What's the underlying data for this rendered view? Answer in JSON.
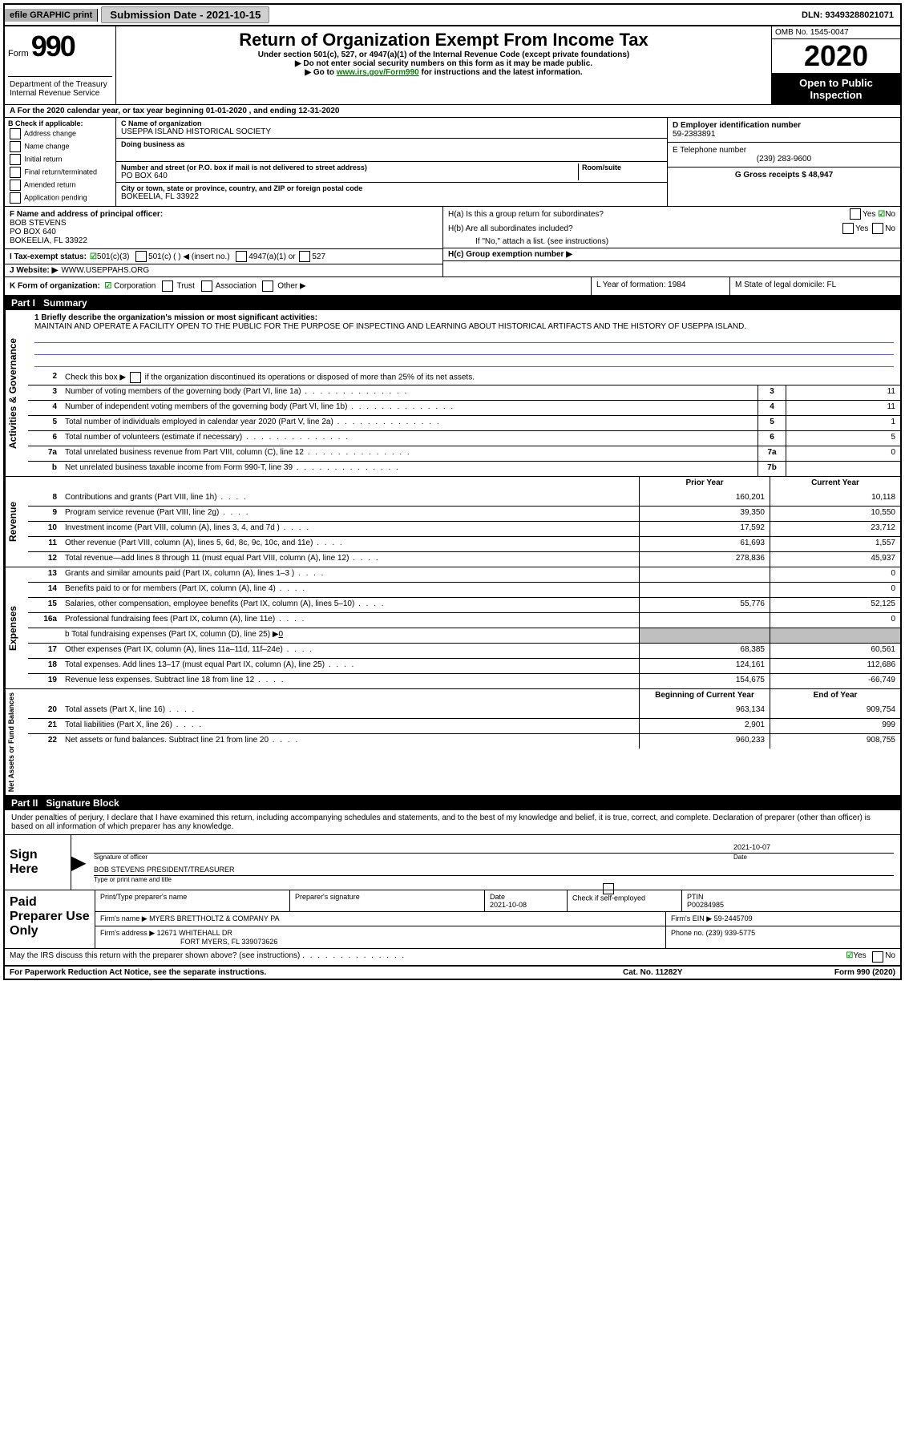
{
  "topbar": {
    "efile_label": "efile GRAPHIC print",
    "submission_label": "Submission Date - 2021-10-15",
    "dln_label": "DLN: 93493288021071"
  },
  "header": {
    "form_label": "Form",
    "form_number": "990",
    "dept_text": "Department of the Treasury\nInternal Revenue Service",
    "title": "Return of Organization Exempt From Income Tax",
    "subtitle": "Under section 501(c), 527, or 4947(a)(1) of the Internal Revenue Code (except private foundations)",
    "instr1_prefix": "▶ Do not enter social security numbers on this form as it may be made public.",
    "instr2_prefix": "▶ Go to ",
    "instr2_link": "www.irs.gov/Form990",
    "instr2_suffix": " for instructions and the latest information.",
    "omb": "OMB No. 1545-0047",
    "year": "2020",
    "open_public1": "Open to Public",
    "open_public2": "Inspection"
  },
  "row_a": "A For the 2020 calendar year, or tax year beginning 01-01-2020    , and ending 12-31-2020",
  "section_b": {
    "b_label": "B Check if applicable:",
    "address_change": "Address change",
    "name_change": "Name change",
    "initial_return": "Initial return",
    "final_return": "Final return/terminated",
    "amended_return": "Amended return",
    "application_pending": "Application pending",
    "c_name_label": "C Name of organization",
    "c_name_val": "USEPPA ISLAND HISTORICAL SOCIETY",
    "dba_label": "Doing business as",
    "addr_label": "Number and street (or P.O. box if mail is not delivered to street address)",
    "addr_val": "PO BOX 640",
    "room_label": "Room/suite",
    "city_label": "City or town, state or province, country, and ZIP or foreign postal code",
    "city_val": "BOKEELIA, FL  33922",
    "d_label": "D Employer identification number",
    "d_val": "59-2383891",
    "e_label": "E Telephone number",
    "e_val": "(239) 283-9600",
    "g_label": "G Gross receipts $ 48,947"
  },
  "section_f": {
    "f_label": "F  Name and address of principal officer:",
    "f_name": "BOB STEVENS",
    "f_addr1": "PO BOX 640",
    "f_addr2": "BOKEELIA, FL  33922",
    "ha_label": "H(a)  Is this a group return for subordinates?",
    "hb_label": "H(b)  Are all subordinates included?",
    "hb_note": "If \"No,\" attach a list. (see instructions)",
    "hc_label": "H(c)   Group exemption number ▶",
    "yes": "Yes",
    "no": "No"
  },
  "row_i": {
    "label": "I    Tax-exempt status:",
    "opt1": "501(c)(3)",
    "opt2": "501(c) (  ) ◀ (insert no.)",
    "opt3": "4947(a)(1) or",
    "opt4": "527"
  },
  "row_j": {
    "label": "J     Website: ▶",
    "val": " WWW.USEPPAHS.ORG"
  },
  "row_k": {
    "k_label": "K Form of organization:",
    "corp": "Corporation",
    "trust": "Trust",
    "assoc": "Association",
    "other": "Other ▶",
    "l_label": "L Year of formation: 1984",
    "m_label": "M State of legal domicile: FL"
  },
  "part1": {
    "tab": "Part I",
    "title": "Summary",
    "q1_label": "1  Briefly describe the organization's mission or most significant activities:",
    "q1_text": "MAINTAIN AND OPERATE A FACILITY OPEN TO THE PUBLIC FOR THE PURPOSE OF INSPECTING AND LEARNING ABOUT HISTORICAL ARTIFACTS AND THE HISTORY OF USEPPA ISLAND.",
    "q2": "Check this box ▶     if the organization discontinued its operations or disposed of more than 25% of its net assets.",
    "vert_gov": "Activities & Governance",
    "vert_rev": "Revenue",
    "vert_exp": "Expenses",
    "vert_net": "Net Assets or Fund Balances",
    "prior_header": "Prior Year",
    "curr_header": "Current Year",
    "begin_header": "Beginning of Current Year",
    "end_header": "End of Year",
    "fund_b_note": "b   Total fundraising expenses (Part IX, column (D), line 25) ▶",
    "fund_b_val": "0",
    "rows_gov": [
      {
        "n": "2",
        "desc": "",
        "box": "",
        "val": ""
      },
      {
        "n": "3",
        "desc": "Number of voting members of the governing body (Part VI, line 1a)",
        "box": "3",
        "val": "11"
      },
      {
        "n": "4",
        "desc": "Number of independent voting members of the governing body (Part VI, line 1b)",
        "box": "4",
        "val": "11"
      },
      {
        "n": "5",
        "desc": "Total number of individuals employed in calendar year 2020 (Part V, line 2a)",
        "box": "5",
        "val": "1"
      },
      {
        "n": "6",
        "desc": "Total number of volunteers (estimate if necessary)",
        "box": "6",
        "val": "5"
      },
      {
        "n": "7a",
        "desc": "Total unrelated business revenue from Part VIII, column (C), line 12",
        "box": "7a",
        "val": "0"
      },
      {
        "n": "b",
        "desc": "Net unrelated business taxable income from Form 990-T, line 39",
        "box": "7b",
        "val": ""
      }
    ],
    "rows_rev": [
      {
        "n": "8",
        "desc": "Contributions and grants (Part VIII, line 1h)",
        "prior": "160,201",
        "curr": "10,118"
      },
      {
        "n": "9",
        "desc": "Program service revenue (Part VIII, line 2g)",
        "prior": "39,350",
        "curr": "10,550"
      },
      {
        "n": "10",
        "desc": "Investment income (Part VIII, column (A), lines 3, 4, and 7d )",
        "prior": "17,592",
        "curr": "23,712"
      },
      {
        "n": "11",
        "desc": "Other revenue (Part VIII, column (A), lines 5, 6d, 8c, 9c, 10c, and 11e)",
        "prior": "61,693",
        "curr": "1,557"
      },
      {
        "n": "12",
        "desc": "Total revenue—add lines 8 through 11 (must equal Part VIII, column (A), line 12)",
        "prior": "278,836",
        "curr": "45,937"
      }
    ],
    "rows_exp": [
      {
        "n": "13",
        "desc": "Grants and similar amounts paid (Part IX, column (A), lines 1–3 )",
        "prior": "",
        "curr": "0"
      },
      {
        "n": "14",
        "desc": "Benefits paid to or for members (Part IX, column (A), line 4)",
        "prior": "",
        "curr": "0"
      },
      {
        "n": "15",
        "desc": "Salaries, other compensation, employee benefits (Part IX, column (A), lines 5–10)",
        "prior": "55,776",
        "curr": "52,125"
      },
      {
        "n": "16a",
        "desc": "Professional fundraising fees (Part IX, column (A), line 11e)",
        "prior": "",
        "curr": "0"
      },
      {
        "n": "17",
        "desc": "Other expenses (Part IX, column (A), lines 11a–11d, 11f–24e)",
        "prior": "68,385",
        "curr": "60,561"
      },
      {
        "n": "18",
        "desc": "Total expenses. Add lines 13–17 (must equal Part IX, column (A), line 25)",
        "prior": "124,161",
        "curr": "112,686"
      },
      {
        "n": "19",
        "desc": "Revenue less expenses. Subtract line 18 from line 12",
        "prior": "154,675",
        "curr": "-66,749"
      }
    ],
    "rows_net": [
      {
        "n": "20",
        "desc": "Total assets (Part X, line 16)",
        "prior": "963,134",
        "curr": "909,754"
      },
      {
        "n": "21",
        "desc": "Total liabilities (Part X, line 26)",
        "prior": "2,901",
        "curr": "999"
      },
      {
        "n": "22",
        "desc": "Net assets or fund balances. Subtract line 21 from line 20",
        "prior": "960,233",
        "curr": "908,755"
      }
    ]
  },
  "part2": {
    "tab": "Part II",
    "title": "Signature Block",
    "decl": "Under penalties of perjury, I declare that I have examined this return, including accompanying schedules and statements, and to the best of my knowledge and belief, it is true, correct, and complete. Declaration of preparer (other than officer) is based on all information of which preparer has any knowledge.",
    "sign_here": "Sign Here",
    "sig_officer_label": "Signature of officer",
    "sig_date_label": "Date",
    "sig_date_val": "2021-10-07",
    "sig_name": "BOB STEVENS  PRESIDENT/TREASURER",
    "sig_name_label": "Type or print name and title",
    "paid": "Paid Preparer Use Only",
    "prep_name_label": "Print/Type preparer's name",
    "prep_sig_label": "Preparer's signature",
    "prep_date_label": "Date",
    "prep_date_val": "2021-10-08",
    "prep_check_label": "Check       if self-employed",
    "ptin_label": "PTIN",
    "ptin_val": "P00284985",
    "firm_name_label": "Firm's name     ▶",
    "firm_name_val": " MYERS BRETTHOLTZ & COMPANY PA",
    "firm_ein_label": "Firm's EIN ▶ ",
    "firm_ein_val": "59-2445709",
    "firm_addr_label": "Firm's address ▶ ",
    "firm_addr_val1": "12671 WHITEHALL DR",
    "firm_addr_val2": "FORT MYERS, FL  339073626",
    "phone_label": "Phone no. ",
    "phone_val": "(239) 939-5775",
    "discuss": "May the IRS discuss this return with the preparer shown above? (see instructions)",
    "yes": "Yes",
    "no": "No"
  },
  "footer": {
    "left": "For Paperwork Reduction Act Notice, see the separate instructions.",
    "mid": "Cat. No. 11282Y",
    "right": "Form 990 (2020)"
  }
}
